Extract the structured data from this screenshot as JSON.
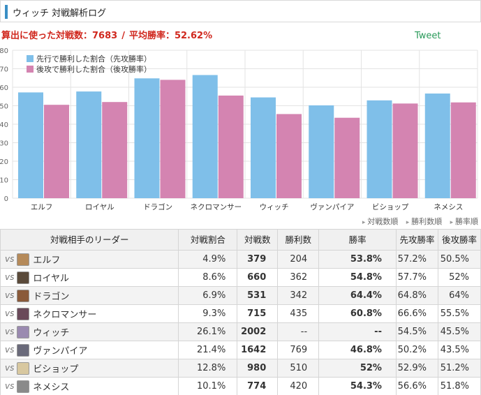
{
  "header": {
    "title": "ウィッチ 対戦解析ログ"
  },
  "summary": {
    "games_label": "算出に使った対戦数：",
    "games_value": "7683",
    "separator": "/",
    "avg_label": "平均勝率：",
    "avg_value": "52.62%"
  },
  "tweet": {
    "label": "Tweet"
  },
  "colors": {
    "first_series": "#7fbfe9",
    "second_series": "#d484b1",
    "title_bar": "#3a8fc4",
    "summary_text": "#d0281e",
    "winrate_text": "#e07a1c"
  },
  "chart_data": {
    "type": "bar",
    "categories": [
      "エルフ",
      "ロイヤル",
      "ドラゴン",
      "ネクロマンサー",
      "ウィッチ",
      "ヴァンパイア",
      "ビショップ",
      "ネメシス"
    ],
    "series": [
      {
        "name": "先行で勝利した割合（先攻勝率）",
        "values": [
          57.2,
          57.7,
          64.8,
          66.6,
          54.5,
          50.2,
          52.9,
          56.6
        ]
      },
      {
        "name": "後攻で勝利した割合（後攻勝率）",
        "values": [
          50.5,
          52,
          64,
          55.5,
          45.5,
          43.5,
          51.2,
          51.8
        ]
      }
    ],
    "ylim": [
      0,
      80
    ],
    "yticks": [
      0,
      10,
      20,
      30,
      40,
      50,
      60,
      70,
      80
    ],
    "legend_position": "top-left",
    "grid": true
  },
  "sort": {
    "by_games": "対戦数順",
    "by_wins": "勝利数順",
    "by_rate": "勝率順"
  },
  "table": {
    "headers": {
      "leader": "対戦相手のリーダー",
      "share": "対戦割合",
      "games": "対戦数",
      "wins": "勝利数",
      "winrate": "勝率",
      "first_rate": "先攻勝率",
      "second_rate": "後攻勝率"
    },
    "vs_label": "vs",
    "rows": [
      {
        "name": "エルフ",
        "share": "4.9%",
        "games": "379",
        "wins": "204",
        "winrate": "53.8%",
        "first": "57.2%",
        "second": "50.5%",
        "avatar": "#b58a5a"
      },
      {
        "name": "ロイヤル",
        "share": "8.6%",
        "games": "660",
        "wins": "362",
        "winrate": "54.8%",
        "first": "57.7%",
        "second": "52%",
        "avatar": "#5a4a3a"
      },
      {
        "name": "ドラゴン",
        "share": "6.9%",
        "games": "531",
        "wins": "342",
        "winrate": "64.4%",
        "first": "64.8%",
        "second": "64%",
        "avatar": "#8a5a3a"
      },
      {
        "name": "ネクロマンサー",
        "share": "9.3%",
        "games": "715",
        "wins": "435",
        "winrate": "60.8%",
        "first": "66.6%",
        "second": "55.5%",
        "avatar": "#6a4a5a"
      },
      {
        "name": "ウィッチ",
        "share": "26.1%",
        "games": "2002",
        "wins": "--",
        "winrate": "--",
        "first": "54.5%",
        "second": "45.5%",
        "avatar": "#9a8ab0"
      },
      {
        "name": "ヴァンパイア",
        "share": "21.4%",
        "games": "1642",
        "wins": "769",
        "winrate": "46.8%",
        "first": "50.2%",
        "second": "43.5%",
        "avatar": "#6a6a7a"
      },
      {
        "name": "ビショップ",
        "share": "12.8%",
        "games": "980",
        "wins": "510",
        "winrate": "52%",
        "first": "52.9%",
        "second": "51.2%",
        "avatar": "#d8c8a0"
      },
      {
        "name": "ネメシス",
        "share": "10.1%",
        "games": "774",
        "wins": "420",
        "winrate": "54.3%",
        "first": "56.6%",
        "second": "51.8%",
        "avatar": "#8a8a8a"
      }
    ]
  }
}
